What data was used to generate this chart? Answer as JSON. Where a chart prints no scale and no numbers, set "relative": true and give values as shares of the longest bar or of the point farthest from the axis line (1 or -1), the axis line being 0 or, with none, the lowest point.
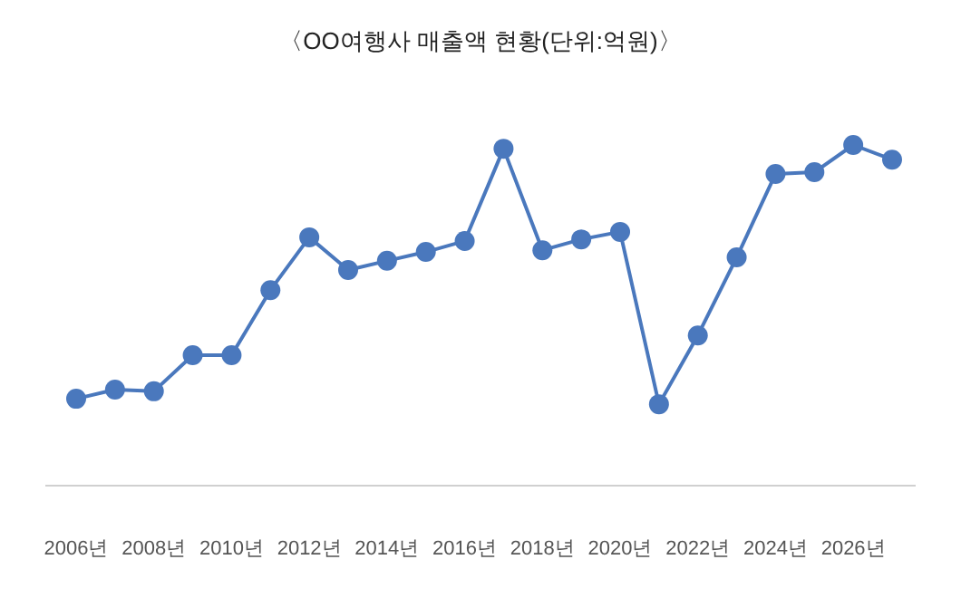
{
  "chart_data": {
    "type": "line",
    "title": "〈OO여행사 매출액 현황(단위:억원)〉",
    "categories": [
      "2006년",
      null,
      "2008년",
      null,
      "2010년",
      null,
      "2012년",
      null,
      "2014년",
      null,
      "2016년",
      null,
      "2018년",
      null,
      "2020년",
      null,
      "2022년",
      null,
      "2024년",
      null,
      "2026년",
      null
    ],
    "values": [
      0.255,
      0.282,
      0.277,
      0.383,
      0.383,
      0.574,
      0.729,
      0.633,
      0.66,
      0.686,
      0.718,
      0.989,
      0.691,
      0.723,
      0.745,
      0.239,
      0.441,
      0.67,
      0.915,
      0.92,
      1,
      0.957
    ],
    "color": "#4a78bd",
    "relative": true,
    "marker": "circle",
    "line_style": "solid",
    "grid": false
  }
}
